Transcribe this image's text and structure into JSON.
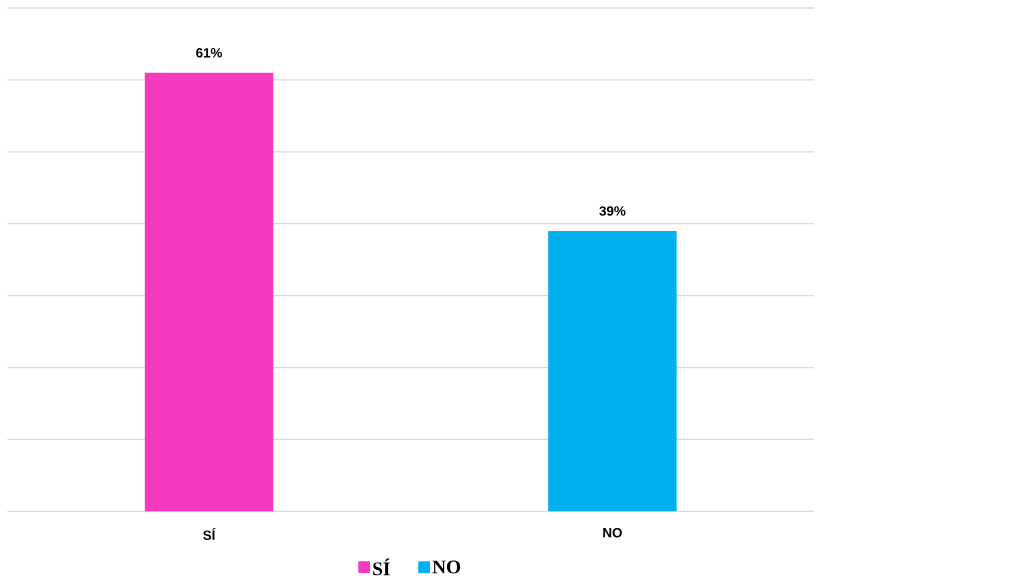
{
  "chart_data": {
    "type": "bar",
    "categories": [
      "SÍ",
      "NO"
    ],
    "series": [
      {
        "name": "SÍ",
        "color": "#f43bbf",
        "values": [
          61,
          null
        ],
        "value_labels": [
          "61%",
          null
        ]
      },
      {
        "name": "NO",
        "color": "#00b0f0",
        "values": [
          null,
          39
        ],
        "value_labels": [
          null,
          "39%"
        ]
      }
    ],
    "ylim": [
      0,
      70
    ],
    "yticks": [
      {
        "value": 0,
        "label": null
      },
      {
        "value": 10,
        "label": null
      },
      {
        "value": 20,
        "label": null
      },
      {
        "value": 30,
        "label": null
      },
      {
        "value": 40,
        "label": null
      },
      {
        "value": 50,
        "label": null
      },
      {
        "value": 60,
        "label": null
      },
      {
        "value": 70,
        "label": null
      }
    ],
    "tick_labels": "x",
    "grid": "y",
    "legend": "bottom"
  }
}
